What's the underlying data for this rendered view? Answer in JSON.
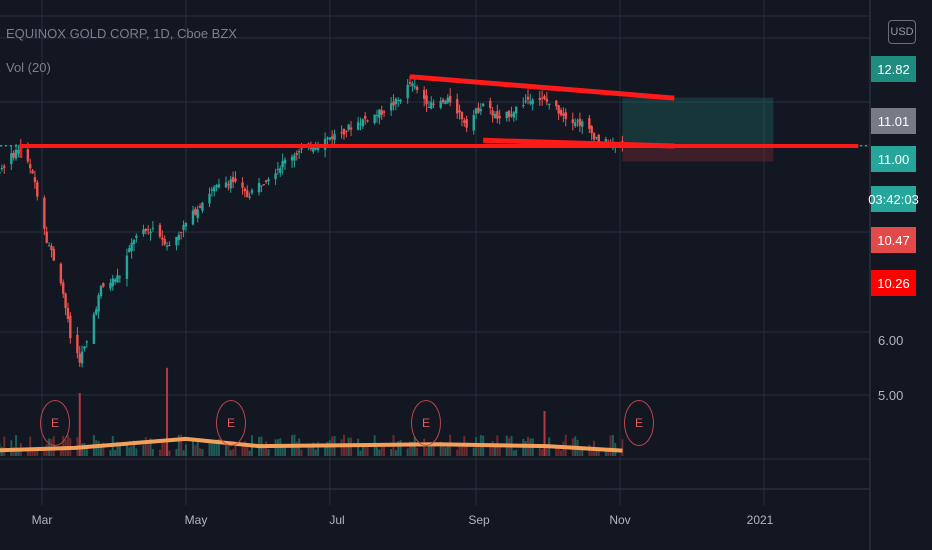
{
  "header": {
    "title": "EQUINOX GOLD CORP, 1D, Cboe BZX",
    "volume_indicator": "Vol (20)"
  },
  "currency_badge": "USD",
  "colors": {
    "background": "#131722",
    "up": "#26a69a",
    "down": "#ef5350",
    "trendline": "#ff1a1a",
    "volume_ma": "#f5a05a",
    "grid": "#2a2e39"
  },
  "price_tags": [
    {
      "label": "12.82",
      "color": "#1e8c7e"
    },
    {
      "label": "11.01",
      "color": "#787b86"
    },
    {
      "label": "11.00",
      "color": "#26a69a"
    },
    {
      "label": "03:42:03",
      "color": "#26a69a"
    },
    {
      "label": "10.47",
      "color": "#e34949"
    },
    {
      "label": "10.26",
      "color": "#ff0000"
    }
  ],
  "earnings_marker": "E",
  "chart_data": {
    "type": "candlestick",
    "title": "EQUINOX GOLD CORP, 1D, Cboe BZX",
    "y_axis": {
      "scale": "log",
      "visible_range": [
        4.3,
        14.5
      ],
      "tick_labels": [
        "5.00",
        "6.00"
      ]
    },
    "x_axis": {
      "tick_labels": [
        "Mar",
        "May",
        "Jul",
        "Sep",
        "Nov",
        "2021"
      ]
    },
    "x_ticks": [
      {
        "date": "2020-03-01",
        "label": "Mar"
      },
      {
        "date": "2020-05-01",
        "label": "May"
      },
      {
        "date": "2020-07-01",
        "label": "Jul"
      },
      {
        "date": "2020-09-01",
        "label": "Sep"
      },
      {
        "date": "2020-11-01",
        "label": "Nov"
      },
      {
        "date": "2021-01-01",
        "label": "2021"
      }
    ],
    "price_series": [
      {
        "date": "2020-01-27",
        "close": 9.4
      },
      {
        "date": "2020-02-10",
        "close": 10.0
      },
      {
        "date": "2020-02-21",
        "close": 11.0
      },
      {
        "date": "2020-02-27",
        "close": 9.8
      },
      {
        "date": "2020-03-03",
        "close": 8.2
      },
      {
        "date": "2020-03-09",
        "close": 7.2
      },
      {
        "date": "2020-03-13",
        "close": 6.0
      },
      {
        "date": "2020-03-17",
        "close": 5.6
      },
      {
        "date": "2020-03-20",
        "close": 5.9
      },
      {
        "date": "2020-03-26",
        "close": 7.0
      },
      {
        "date": "2020-04-03",
        "close": 7.3
      },
      {
        "date": "2020-04-09",
        "close": 8.2
      },
      {
        "date": "2020-04-17",
        "close": 8.5
      },
      {
        "date": "2020-04-24",
        "close": 8.0
      },
      {
        "date": "2020-05-01",
        "close": 8.6
      },
      {
        "date": "2020-05-11",
        "close": 9.5
      },
      {
        "date": "2020-05-20",
        "close": 9.9
      },
      {
        "date": "2020-05-27",
        "close": 9.4
      },
      {
        "date": "2020-06-05",
        "close": 10.0
      },
      {
        "date": "2020-06-15",
        "close": 10.7
      },
      {
        "date": "2020-06-26",
        "close": 11.1
      },
      {
        "date": "2020-07-06",
        "close": 11.5
      },
      {
        "date": "2020-07-14",
        "close": 11.9
      },
      {
        "date": "2020-07-22",
        "close": 12.2
      },
      {
        "date": "2020-07-30",
        "close": 12.7
      },
      {
        "date": "2020-08-04",
        "close": 13.4
      },
      {
        "date": "2020-08-07",
        "close": 13.1
      },
      {
        "date": "2020-08-13",
        "close": 12.5
      },
      {
        "date": "2020-08-21",
        "close": 12.7
      },
      {
        "date": "2020-08-28",
        "close": 11.8
      },
      {
        "date": "2020-09-04",
        "close": 12.6
      },
      {
        "date": "2020-09-11",
        "close": 11.9
      },
      {
        "date": "2020-09-18",
        "close": 12.4
      },
      {
        "date": "2020-09-25",
        "close": 12.9
      },
      {
        "date": "2020-10-02",
        "close": 12.6
      },
      {
        "date": "2020-10-09",
        "close": 12.1
      },
      {
        "date": "2020-10-16",
        "close": 11.8
      },
      {
        "date": "2020-10-23",
        "close": 11.2
      },
      {
        "date": "2020-10-30",
        "close": 11.0
      },
      {
        "date": "2020-11-02",
        "close": 11.01
      }
    ],
    "volume_ma": [
      {
        "date": "2020-01-27",
        "value": 0.25
      },
      {
        "date": "2020-03-15",
        "value": 0.45
      },
      {
        "date": "2020-05-01",
        "value": 0.95
      },
      {
        "date": "2020-06-01",
        "value": 0.55
      },
      {
        "date": "2020-08-15",
        "value": 0.65
      },
      {
        "date": "2020-10-01",
        "value": 0.55
      },
      {
        "date": "2020-11-02",
        "value": 0.3
      }
    ],
    "volume_spikes": [
      {
        "date": "2020-03-17",
        "value": 3.5
      },
      {
        "date": "2020-04-23",
        "value": 4.9
      },
      {
        "date": "2020-09-30",
        "value": 2.5
      }
    ],
    "trendlines": [
      {
        "name": "resistance",
        "from": {
          "date": "2020-08-04",
          "price": 13.7
        },
        "to": {
          "date": "2020-11-24",
          "price": 12.8
        }
      },
      {
        "name": "support",
        "from": {
          "date": "2020-02-21",
          "price": 11.0
        },
        "to": {
          "date": "2021-02-10",
          "price": 11.0
        }
      },
      {
        "name": "channel",
        "from": {
          "date": "2020-09-04",
          "price": 11.2
        },
        "to": {
          "date": "2020-11-24",
          "price": 11.0
        }
      }
    ],
    "position_box": {
      "start": "2020-11-02",
      "end": "2021-01-05",
      "entry": 11.01,
      "target": 12.82,
      "stop": 10.47
    },
    "current_price": 11.01,
    "earnings_dates": [
      "2020-02-27",
      "2020-05-06",
      "2020-08-06",
      "2020-11-04"
    ]
  }
}
